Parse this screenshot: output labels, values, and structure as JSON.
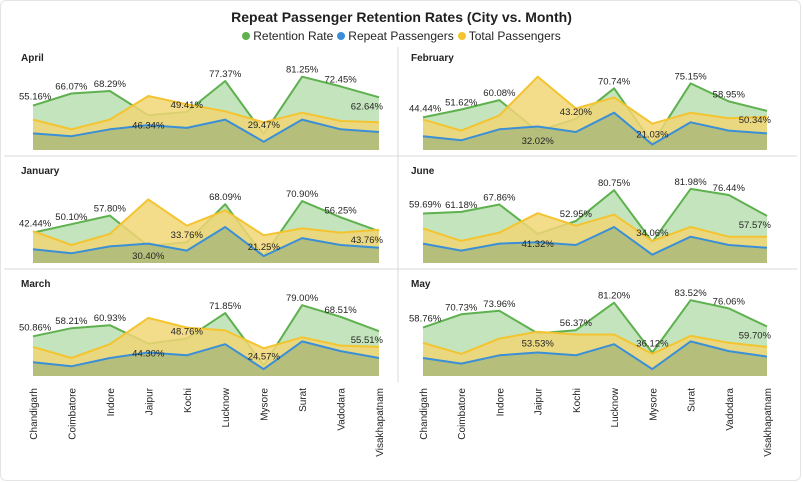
{
  "chart_data": {
    "type": "area",
    "title": "Repeat Passenger Retention Rates (City vs. Month)",
    "legend_position": "top-center",
    "grid": false,
    "categories": [
      "Chandigarh",
      "Coimbatore",
      "Indore",
      "Jaipur",
      "Kochi",
      "Lucknow",
      "Mysore",
      "Surat",
      "Vadodara",
      "Visakhapatnam"
    ],
    "series_meta": [
      {
        "name": "Retention Rate",
        "color": "#5eb14e",
        "fill": "#b9dfb0"
      },
      {
        "name": "Repeat Passengers",
        "color": "#3a8fd6",
        "fill": "#a9b87a"
      },
      {
        "name": "Total Passengers",
        "color": "#f4c430",
        "fill": "#f1d676"
      }
    ],
    "panels": [
      {
        "month": "April",
        "retention_rate": [
          55.16,
          66.07,
          68.29,
          46.34,
          49.41,
          77.37,
          29.47,
          81.25,
          72.45,
          62.64
        ],
        "repeat_passengers": [
          12,
          10,
          15,
          18,
          16,
          22,
          6,
          22,
          15,
          13
        ],
        "total_passengers": [
          22,
          15,
          22,
          39,
          33,
          28,
          20,
          27,
          21,
          20
        ]
      },
      {
        "month": "February",
        "retention_rate": [
          44.44,
          51.62,
          60.08,
          32.02,
          43.2,
          70.74,
          21.03,
          75.15,
          58.95,
          50.34
        ],
        "repeat_passengers": [
          10,
          7,
          15,
          17,
          13,
          27,
          4,
          20,
          14,
          12
        ],
        "total_passengers": [
          22,
          14,
          25,
          53,
          30,
          38,
          19,
          27,
          23,
          24
        ]
      },
      {
        "month": "January",
        "retention_rate": [
          42.44,
          50.1,
          57.8,
          30.4,
          33.76,
          68.09,
          21.25,
          70.9,
          56.25,
          43.76
        ],
        "repeat_passengers": [
          10,
          7,
          12,
          14,
          9,
          26,
          5,
          18,
          13,
          11
        ],
        "total_passengers": [
          23,
          13,
          21,
          46,
          27,
          38,
          20,
          25,
          22,
          24
        ]
      },
      {
        "month": "June",
        "retention_rate": [
          59.69,
          61.18,
          67.86,
          41.32,
          52.95,
          80.75,
          34.06,
          81.98,
          76.44,
          57.57
        ],
        "repeat_passengers": [
          14,
          9,
          14,
          15,
          13,
          26,
          6,
          19,
          13,
          11
        ],
        "total_passengers": [
          25,
          16,
          22,
          36,
          27,
          35,
          16,
          26,
          19,
          19
        ]
      },
      {
        "month": "March",
        "retention_rate": [
          50.86,
          58.21,
          60.93,
          44.3,
          48.76,
          71.85,
          24.57,
          79.0,
          68.51,
          55.51
        ],
        "repeat_passengers": [
          10,
          7,
          13,
          17,
          15,
          23,
          5,
          25,
          18,
          13
        ],
        "total_passengers": [
          21,
          13,
          23,
          42,
          35,
          33,
          20,
          28,
          22,
          21
        ]
      },
      {
        "month": "May",
        "retention_rate": [
          58.76,
          70.73,
          73.96,
          53.53,
          56.37,
          81.2,
          36.12,
          83.52,
          76.06,
          59.7
        ],
        "repeat_passengers": [
          13,
          9,
          15,
          17,
          15,
          23,
          5,
          25,
          18,
          14
        ],
        "total_passengers": [
          24,
          16,
          27,
          32,
          30,
          30,
          16,
          29,
          24,
          21
        ]
      }
    ]
  }
}
